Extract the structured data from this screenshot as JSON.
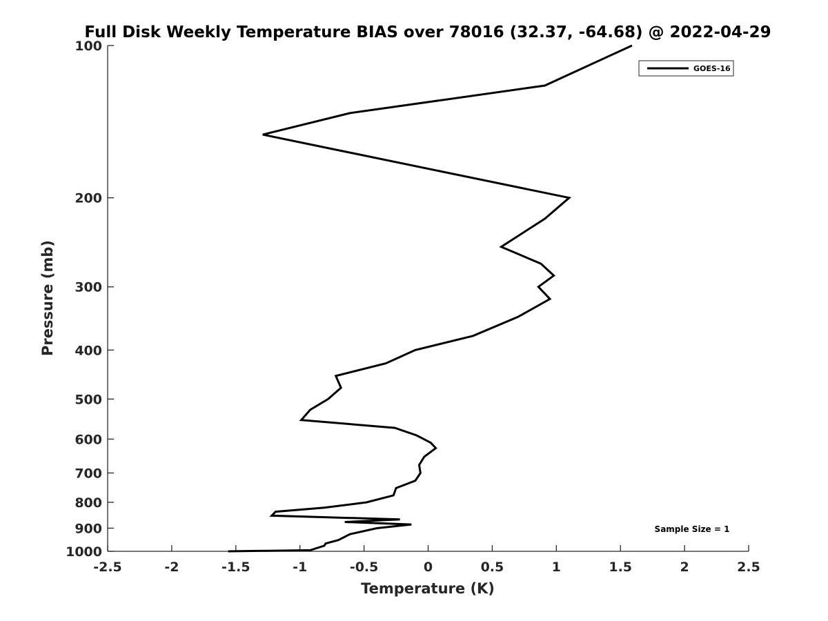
{
  "chart_data": {
    "type": "line",
    "title": "Full Disk Weekly Temperature BIAS over 78016 (32.37, -64.68) @ 2022-04-29",
    "xlabel": "Temperature (K)",
    "ylabel": "Pressure (mb)",
    "xlim": [
      -2.5,
      2.5
    ],
    "ylim": [
      100,
      1000
    ],
    "y_scale": "log",
    "y_reversed": true,
    "grid": false,
    "legend_position": "top-right",
    "xticks": [
      -2.5,
      -2,
      -1.5,
      -1,
      -0.5,
      0,
      0.5,
      1,
      1.5,
      2,
      2.5
    ],
    "xtick_labels": [
      "-2.5",
      "-2",
      "-1.5",
      "-1",
      "-0.5",
      "0",
      "0.5",
      "1",
      "1.5",
      "2",
      "2.5"
    ],
    "yticks": [
      100,
      200,
      300,
      400,
      500,
      600,
      700,
      800,
      900,
      1000
    ],
    "ytick_labels": [
      "100",
      "200",
      "300",
      "400",
      "500",
      "600",
      "700",
      "800",
      "900",
      "1000"
    ],
    "series": [
      {
        "name": "GOES-16",
        "color": "#000000",
        "points": [
          [
            1.59,
            100
          ],
          [
            0.91,
            120
          ],
          [
            -0.61,
            136
          ],
          [
            -1.29,
            150
          ],
          [
            1.1,
            200
          ],
          [
            0.91,
            220
          ],
          [
            0.57,
            250
          ],
          [
            0.88,
            270
          ],
          [
            0.98,
            285
          ],
          [
            0.86,
            300
          ],
          [
            0.95,
            317
          ],
          [
            0.7,
            344
          ],
          [
            0.35,
            375
          ],
          [
            -0.1,
            400
          ],
          [
            -0.33,
            425
          ],
          [
            -0.72,
            450
          ],
          [
            -0.68,
            475
          ],
          [
            -0.78,
            500
          ],
          [
            -0.92,
            525
          ],
          [
            -0.99,
            550
          ],
          [
            -0.26,
            570
          ],
          [
            -0.09,
            590
          ],
          [
            0.02,
            610
          ],
          [
            0.06,
            625
          ],
          [
            -0.03,
            650
          ],
          [
            -0.07,
            675
          ],
          [
            -0.06,
            700
          ],
          [
            -0.1,
            725
          ],
          [
            -0.25,
            750
          ],
          [
            -0.27,
            775
          ],
          [
            -0.48,
            800
          ],
          [
            -0.81,
            820
          ],
          [
            -1.19,
            835
          ],
          [
            -1.22,
            850
          ],
          [
            -0.22,
            865
          ],
          [
            -0.65,
            875
          ],
          [
            -0.13,
            885
          ],
          [
            -0.4,
            900
          ],
          [
            -0.61,
            925
          ],
          [
            -0.7,
            950
          ],
          [
            -0.8,
            965
          ],
          [
            -0.81,
            975
          ],
          [
            -0.92,
            995
          ],
          [
            -1.56,
            1000
          ]
        ]
      }
    ],
    "annotations": [
      "Sample Size = 1"
    ]
  }
}
